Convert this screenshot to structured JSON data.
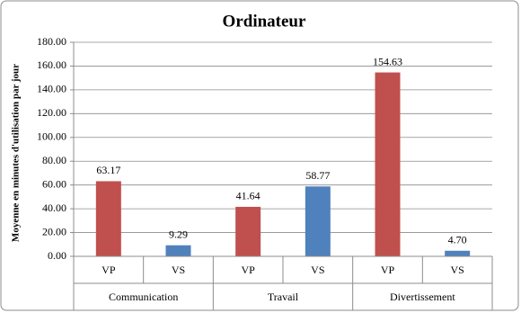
{
  "chart_data": {
    "type": "bar",
    "title": "Ordinateur",
    "y_label": "Moyenne en minutes d'utilisation par jour",
    "categories": [
      "VP",
      "VS",
      "VP",
      "VS",
      "VP",
      "VS"
    ],
    "groups": [
      "Communication",
      "Travail",
      "Divertissement"
    ],
    "values": [
      63.17,
      9.29,
      41.64,
      58.77,
      154.63,
      4.7
    ],
    "value_labels": [
      "63.17",
      "9.29",
      "41.64",
      "58.77",
      "154.63",
      "4.70"
    ],
    "colors": [
      "#c0504d",
      "#4f81bd",
      "#c0504d",
      "#4f81bd",
      "#c0504d",
      "#4f81bd"
    ],
    "ylim": [
      0,
      180
    ],
    "yticks": [
      {
        "value": 0,
        "label": "0.00"
      },
      {
        "value": 20,
        "label": "20.00"
      },
      {
        "value": 40,
        "label": "40.00"
      },
      {
        "value": 60,
        "label": "60.00"
      },
      {
        "value": 80,
        "label": "80.00"
      },
      {
        "value": 100,
        "label": "100.00"
      },
      {
        "value": 120,
        "label": "120.00"
      },
      {
        "value": 140,
        "label": "140.00"
      },
      {
        "value": 160,
        "label": "160.00"
      },
      {
        "value": 180,
        "label": "180.00"
      }
    ],
    "grid": true
  }
}
